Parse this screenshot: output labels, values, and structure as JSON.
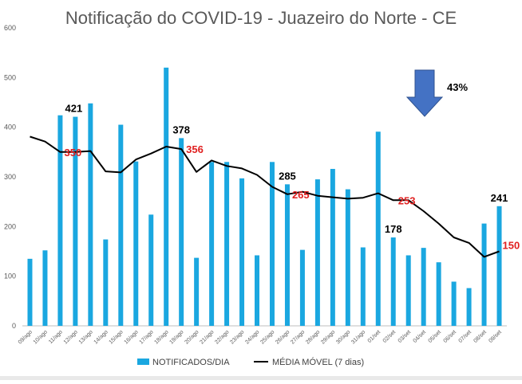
{
  "chart_data": {
    "type": "bar",
    "title": "Notificação do COVID-19 - Juazeiro do Norte - CE",
    "xlabel": "",
    "ylabel": "",
    "ylim": [
      0,
      600
    ],
    "yticks": [
      0,
      100,
      200,
      300,
      400,
      500,
      600
    ],
    "grid": false,
    "legend_position": "bottom",
    "categories": [
      "09/ago",
      "10/ago",
      "11/ago",
      "12/ago",
      "13/ago",
      "14/ago",
      "15/ago",
      "16/ago",
      "17/ago",
      "18/ago",
      "19/ago",
      "20/ago",
      "21/ago",
      "22/ago",
      "23/ago",
      "24/ago",
      "25/ago",
      "26/ago",
      "27/ago",
      "28/ago",
      "29/ago",
      "30/ago",
      "31/ago",
      "01/set",
      "02/set",
      "03/set",
      "04/set",
      "05/set",
      "06/set",
      "07/set",
      "08/set",
      "09/set"
    ],
    "series": [
      {
        "name": "NOTIFICADOS/DIA",
        "type": "bar",
        "color": "#1aa7e0",
        "values": [
          135,
          152,
          424,
          421,
          448,
          174,
          405,
          331,
          224,
          520,
          378,
          137,
          330,
          330,
          297,
          142,
          330,
          285,
          153,
          295,
          316,
          275,
          158,
          391,
          178,
          142,
          157,
          128,
          89,
          76,
          206,
          241
        ]
      },
      {
        "name": "MÉDIA MÓVEL (7 dias)",
        "type": "line",
        "color": "#000000",
        "values": [
          381,
          371,
          350,
          350,
          352,
          311,
          309,
          335,
          347,
          361,
          356,
          310,
          333,
          322,
          317,
          304,
          280,
          265,
          270,
          262,
          259,
          256,
          258,
          267,
          253,
          253,
          231,
          206,
          178,
          167,
          139,
          150
        ]
      }
    ],
    "annotations": [
      {
        "text": "421",
        "x": "12/ago",
        "y": 421,
        "color": "#000000"
      },
      {
        "text": "350",
        "x": "12/ago",
        "y": 350,
        "color": "#e02020"
      },
      {
        "text": "378",
        "x": "19/ago",
        "y": 378,
        "color": "#000000"
      },
      {
        "text": "356",
        "x": "19/ago",
        "y": 356,
        "color": "#e02020"
      },
      {
        "text": "285",
        "x": "26/ago",
        "y": 285,
        "color": "#000000"
      },
      {
        "text": "265",
        "x": "26/ago",
        "y": 265,
        "color": "#e02020"
      },
      {
        "text": "178",
        "x": "02/set",
        "y": 178,
        "color": "#000000"
      },
      {
        "text": "253",
        "x": "02/set",
        "y": 253,
        "color": "#e02020"
      },
      {
        "text": "241",
        "x": "09/set",
        "y": 241,
        "color": "#000000"
      },
      {
        "text": "150",
        "x": "09/set",
        "y": 150,
        "color": "#e02020"
      }
    ],
    "callout": {
      "icon": "down-arrow-icon",
      "text": "43%",
      "color": "#4472c4"
    }
  }
}
